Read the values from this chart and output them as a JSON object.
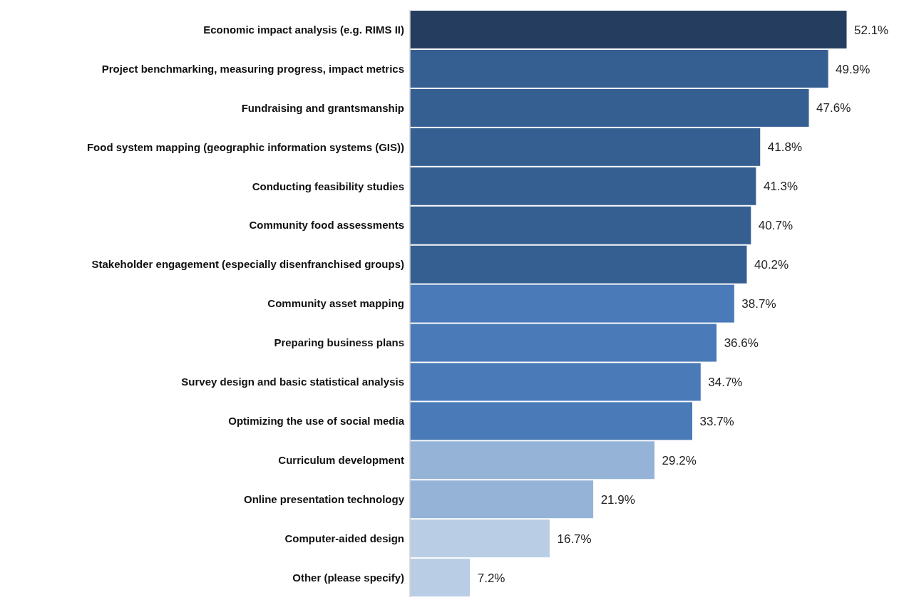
{
  "chart_data": {
    "type": "bar",
    "orientation": "horizontal",
    "value_labels": [
      "52.1%",
      "49.9%",
      "47.6%",
      "41.8%",
      "41.3%",
      "40.7%",
      "40.2%",
      "38.7%",
      "36.6%",
      "34.7%",
      "33.7%",
      "29.2%",
      "21.9%",
      "16.7%",
      "7.2%"
    ],
    "categories": [
      "Economic impact analysis (e.g. RIMS II)",
      "Project benchmarking, measuring progress, impact metrics",
      "Fundraising and grantsmanship",
      "Food system mapping (geographic information systems (GIS))",
      "Conducting feasibility studies",
      "Community food assessments",
      "Stakeholder engagement (especially disenfranchised groups)",
      "Community asset mapping",
      "Preparing business plans",
      "Survey design and basic statistical analysis",
      "Optimizing the use of social media",
      "Curriculum development",
      "Online presentation technology",
      "Computer-aided design",
      "Other (please specify)"
    ],
    "values": [
      52.1,
      49.9,
      47.6,
      41.8,
      41.3,
      40.7,
      40.2,
      38.7,
      36.6,
      34.7,
      33.7,
      29.2,
      21.9,
      16.7,
      7.2
    ],
    "colors": [
      "#253d5e",
      "#365f91",
      "#365f91",
      "#365f91",
      "#365f91",
      "#365f91",
      "#365f91",
      "#4a7ab8",
      "#4a7ab8",
      "#4a7ab8",
      "#4a7ab8",
      "#95b3d7",
      "#95b3d7",
      "#b9cde5",
      "#b9cde5"
    ]
  }
}
